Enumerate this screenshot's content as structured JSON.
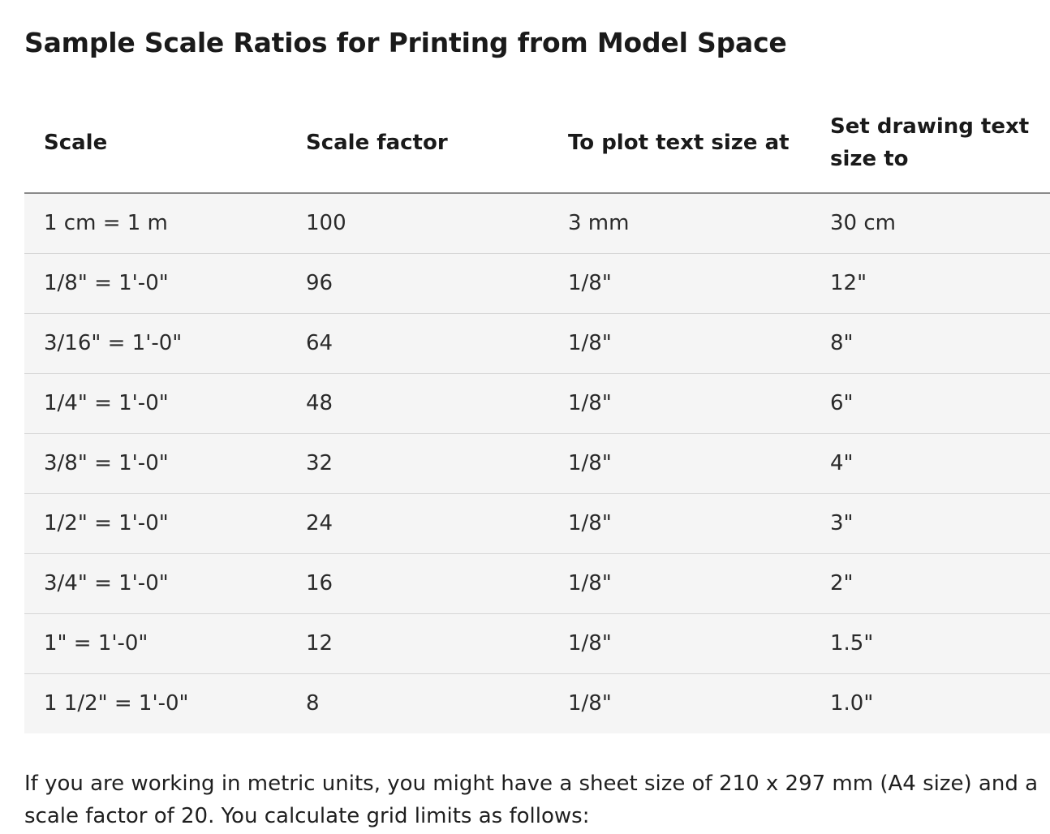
{
  "title": "Sample Scale Ratios for Printing from Model Space",
  "table": {
    "headers": [
      "Scale",
      "Scale factor",
      "To plot text size at",
      "Set drawing text size to"
    ],
    "rows": [
      [
        "1 cm = 1 m",
        "100",
        "3 mm",
        "30 cm"
      ],
      [
        "1/8\" = 1'-0\"",
        "96",
        "1/8\"",
        "12\""
      ],
      [
        "3/16\" = 1'-0\"",
        "64",
        "1/8\"",
        "8\""
      ],
      [
        "1/4\" = 1'-0\"",
        "48",
        "1/8\"",
        "6\""
      ],
      [
        "3/8\" = 1'-0\"",
        "32",
        "1/8\"",
        "4\""
      ],
      [
        "1/2\" = 1'-0\"",
        "24",
        "1/8\"",
        "3\""
      ],
      [
        "3/4\" = 1'-0\"",
        "16",
        "1/8\"",
        "2\""
      ],
      [
        "1\" = 1'-0\"",
        "12",
        "1/8\"",
        "1.5\""
      ],
      [
        "1 1/2\" = 1'-0\"",
        "8",
        "1/8\"",
        "1.0\""
      ]
    ]
  },
  "paragraph": "If you are working in metric units, you might have a sheet size of 210 x 297 mm (A4 size) and a scale factor of 20. You calculate grid limits as follows:"
}
